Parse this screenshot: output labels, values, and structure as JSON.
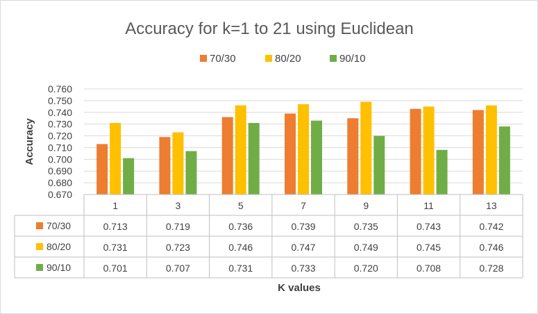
{
  "chart_data": {
    "type": "bar",
    "title": "Accuracy for k=1 to 21 using Euclidean",
    "xlabel": "K values",
    "ylabel": "Accuracy",
    "categories": [
      "1",
      "3",
      "5",
      "7",
      "9",
      "11",
      "13"
    ],
    "ylim": [
      0.67,
      0.76
    ],
    "yticks": [
      "0.670",
      "0.680",
      "0.690",
      "0.700",
      "0.710",
      "0.720",
      "0.730",
      "0.740",
      "0.750",
      "0.760"
    ],
    "grid": true,
    "legend": "top",
    "data_table": true,
    "series": [
      {
        "name": "70/30",
        "color": "#ED7D31",
        "values": [
          0.713,
          0.719,
          0.736,
          0.739,
          0.735,
          0.743,
          0.742
        ],
        "labels": [
          "0.713",
          "0.719",
          "0.736",
          "0.739",
          "0.735",
          "0.743",
          "0.742"
        ]
      },
      {
        "name": "80/20",
        "color": "#FFC000",
        "values": [
          0.731,
          0.723,
          0.746,
          0.747,
          0.749,
          0.745,
          0.746
        ],
        "labels": [
          "0.731",
          "0.723",
          "0.746",
          "0.747",
          "0.749",
          "0.745",
          "0.746"
        ]
      },
      {
        "name": "90/10",
        "color": "#70AD47",
        "values": [
          0.701,
          0.707,
          0.731,
          0.733,
          0.72,
          0.708,
          0.728
        ],
        "labels": [
          "0.701",
          "0.707",
          "0.731",
          "0.733",
          "0.720",
          "0.708",
          "0.728"
        ]
      }
    ]
  }
}
